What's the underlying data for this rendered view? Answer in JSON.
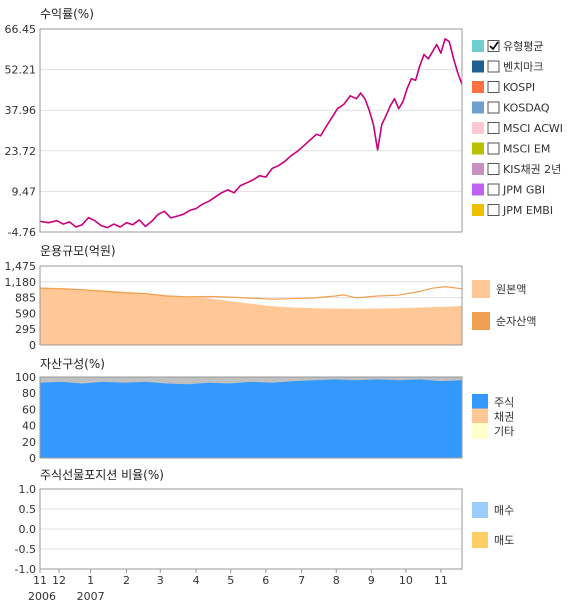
{
  "chart_data": [
    {
      "type": "line",
      "title": "수익률(%)",
      "yticks": [
        "66.45",
        "52.21",
        "37.96",
        "23.72",
        "9.47",
        "-4.76"
      ],
      "ylim": [
        -4.76,
        66.45
      ],
      "grid": true,
      "legend_position": "right",
      "legend": [
        {
          "label": "유형평균",
          "color": "#6fcfcf",
          "checked": true
        },
        {
          "label": "벤치마크",
          "color": "#1f5f8f",
          "checked": false
        },
        {
          "label": "KOSPI",
          "color": "#ff7043",
          "checked": false
        },
        {
          "label": "KOSDAQ",
          "color": "#6f9fcf",
          "checked": false
        },
        {
          "label": "MSCI ACWI",
          "color": "#ffc8d0",
          "checked": false
        },
        {
          "label": "MSCI EM",
          "color": "#b8c000",
          "checked": false
        },
        {
          "label": "KIS채권 2년",
          "color": "#c890c0",
          "checked": false
        },
        {
          "label": "JPM GBI",
          "color": "#c060f0",
          "checked": false
        },
        {
          "label": "JPM EMBI",
          "color": "#f0c000",
          "checked": false
        }
      ],
      "series": [
        {
          "color": "#c8007f",
          "x": [
            0,
            0.02,
            0.04,
            0.055,
            0.07,
            0.085,
            0.1,
            0.115,
            0.13,
            0.145,
            0.16,
            0.175,
            0.19,
            0.205,
            0.22,
            0.235,
            0.25,
            0.265,
            0.28,
            0.295,
            0.31,
            0.325,
            0.34,
            0.355,
            0.37,
            0.385,
            0.4,
            0.415,
            0.43,
            0.445,
            0.46,
            0.475,
            0.49,
            0.505,
            0.52,
            0.535,
            0.55,
            0.565,
            0.58,
            0.595,
            0.61,
            0.625,
            0.64,
            0.655,
            0.665,
            0.675,
            0.69,
            0.705,
            0.72,
            0.735,
            0.75,
            0.76,
            0.77,
            0.78,
            0.79,
            0.8,
            0.81,
            0.82,
            0.83,
            0.84,
            0.85,
            0.86,
            0.87,
            0.88,
            0.89,
            0.9,
            0.91,
            0.92,
            0.93,
            0.94,
            0.95,
            0.96,
            0.97,
            0.98,
            0.99,
            1.0
          ],
          "values": [
            -1.0,
            -1.5,
            -0.8,
            -2.0,
            -1.2,
            -3.0,
            -2.2,
            0.3,
            -0.8,
            -2.5,
            -3.2,
            -2.0,
            -3.0,
            -1.5,
            -2.2,
            -0.5,
            -2.8,
            -1.0,
            1.5,
            2.5,
            0.2,
            0.8,
            1.5,
            2.8,
            3.5,
            5.0,
            6.0,
            7.5,
            9.0,
            10.0,
            9.0,
            11.5,
            12.5,
            13.5,
            15.0,
            14.5,
            17.5,
            18.5,
            20.0,
            22.0,
            23.5,
            25.5,
            27.5,
            29.5,
            29.0,
            31.5,
            35.0,
            38.5,
            40.0,
            43.0,
            42.0,
            44.0,
            42.0,
            38.0,
            33.0,
            24.0,
            33.0,
            36.0,
            39.5,
            42.0,
            38.5,
            41.0,
            45.5,
            49.0,
            48.5,
            53.5,
            57.5,
            56.0,
            58.5,
            61.0,
            58.0,
            63.0,
            62.0,
            56.0,
            51.0,
            47.0
          ]
        }
      ]
    },
    {
      "type": "area",
      "title": "운용규모(억원)",
      "yticks": [
        "1,475",
        "1,180",
        "885",
        "590",
        "295",
        "0"
      ],
      "ylim": [
        0,
        1475
      ],
      "grid": true,
      "legend_position": "right",
      "legend": [
        {
          "label": "원본액",
          "color": "#ffc896"
        },
        {
          "label": "순자산액",
          "color": "#f0a050"
        }
      ],
      "series": [
        {
          "name": "원본액",
          "kind": "area",
          "color": "#ffc896",
          "x": [
            0,
            0.05,
            0.1,
            0.15,
            0.2,
            0.25,
            0.3,
            0.35,
            0.4,
            0.45,
            0.5,
            0.55,
            0.6,
            0.65,
            0.7,
            0.75,
            0.8,
            0.85,
            0.9,
            0.95,
            1.0
          ],
          "values": [
            1075,
            1065,
            1045,
            1020,
            995,
            965,
            930,
            905,
            870,
            815,
            770,
            725,
            700,
            685,
            680,
            678,
            680,
            688,
            700,
            712,
            728
          ]
        },
        {
          "name": "순자산액",
          "kind": "line",
          "color": "#f0a050",
          "x": [
            0,
            0.05,
            0.1,
            0.15,
            0.2,
            0.25,
            0.3,
            0.35,
            0.4,
            0.45,
            0.5,
            0.55,
            0.6,
            0.65,
            0.7,
            0.72,
            0.75,
            0.8,
            0.85,
            0.9,
            0.93,
            0.96,
            1.0
          ],
          "values": [
            1060,
            1050,
            1030,
            1000,
            975,
            960,
            915,
            900,
            905,
            895,
            875,
            855,
            865,
            880,
            915,
            935,
            880,
            915,
            930,
            1000,
            1060,
            1090,
            1050
          ]
        }
      ]
    },
    {
      "type": "area",
      "title": "자산구성(%)",
      "yticks": [
        "100",
        "80",
        "60",
        "40",
        "20",
        "0"
      ],
      "ylim": [
        0,
        100
      ],
      "grid": true,
      "legend_position": "right",
      "background_color": "#c0c0c0",
      "legend": [
        {
          "label": "주식",
          "color": "#3399ff"
        },
        {
          "label": "채권",
          "color": "#ffc896"
        },
        {
          "label": "기타",
          "color": "#ffffcc"
        }
      ],
      "series": [
        {
          "name": "주식",
          "kind": "area",
          "color": "#3399ff",
          "x": [
            0,
            0.05,
            0.1,
            0.15,
            0.2,
            0.25,
            0.3,
            0.35,
            0.4,
            0.45,
            0.5,
            0.55,
            0.6,
            0.65,
            0.7,
            0.75,
            0.8,
            0.85,
            0.9,
            0.95,
            1.0
          ],
          "values": [
            93,
            94,
            92,
            94,
            93,
            94,
            92,
            91,
            93,
            92,
            94,
            93,
            95,
            96,
            97,
            96,
            97,
            96,
            97,
            95,
            96
          ]
        }
      ]
    },
    {
      "type": "bar",
      "title": "주식선물포지션 비율(%)",
      "yticks": [
        "1.0",
        "0.5",
        "0.0",
        "-0.5",
        "-1.0"
      ],
      "ylim": [
        -1.0,
        1.0
      ],
      "grid": true,
      "legend_position": "right",
      "legend": [
        {
          "label": "매수",
          "color": "#99ccff"
        },
        {
          "label": "매도",
          "color": "#ffcc66"
        }
      ],
      "series": []
    }
  ],
  "x_axis": {
    "ticks": [
      {
        "label": "11",
        "pos": 0.0
      },
      {
        "label": "12",
        "pos": 0.045
      },
      {
        "label": "1",
        "pos": 0.12
      },
      {
        "label": "2",
        "pos": 0.205
      },
      {
        "label": "3",
        "pos": 0.285
      },
      {
        "label": "4",
        "pos": 0.37
      },
      {
        "label": "5",
        "pos": 0.452
      },
      {
        "label": "6",
        "pos": 0.535
      },
      {
        "label": "7",
        "pos": 0.62
      },
      {
        "label": "8",
        "pos": 0.702
      },
      {
        "label": "9",
        "pos": 0.785
      },
      {
        "label": "10",
        "pos": 0.867
      },
      {
        "label": "11",
        "pos": 0.95
      }
    ],
    "years": [
      {
        "label": "2006",
        "pos": 0.0
      },
      {
        "label": "2007",
        "pos": 0.12
      }
    ]
  }
}
